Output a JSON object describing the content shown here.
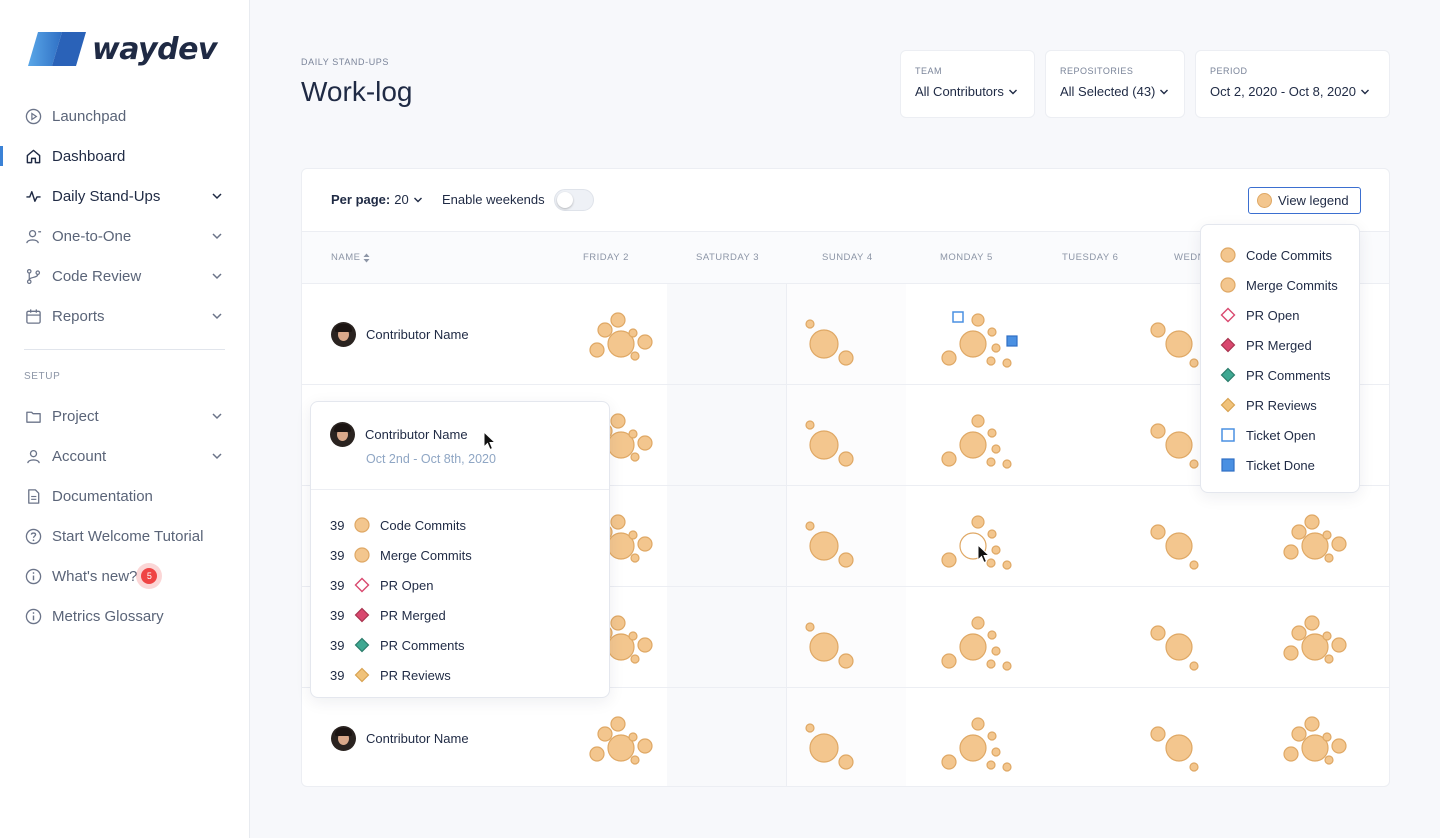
{
  "brand": {
    "name": "waydev"
  },
  "sidebar": {
    "items": [
      {
        "label": "Launchpad",
        "icon": "play-circle-icon",
        "chevron": false
      },
      {
        "label": "Dashboard",
        "icon": "home-icon",
        "chevron": false,
        "active": true
      },
      {
        "label": "Daily Stand-Ups",
        "icon": "activity-icon",
        "chevron": true
      },
      {
        "label": "One-to-One",
        "icon": "user-icon",
        "chevron": true
      },
      {
        "label": "Code Review",
        "icon": "git-branch-icon",
        "chevron": true
      },
      {
        "label": "Reports",
        "icon": "calendar-icon",
        "chevron": true
      }
    ],
    "setup_label": "SETUP",
    "setup_items": [
      {
        "label": "Project",
        "icon": "folder-icon",
        "chevron": true
      },
      {
        "label": "Account",
        "icon": "user-icon",
        "chevron": true
      },
      {
        "label": "Documentation",
        "icon": "file-icon",
        "chevron": false
      },
      {
        "label": "Start Welcome Tutorial",
        "icon": "help-circle-icon",
        "chevron": false
      },
      {
        "label": "What's new?",
        "icon": "info-icon",
        "chevron": false,
        "badge": "5"
      },
      {
        "label": "Metrics Glossary",
        "icon": "info-icon",
        "chevron": false
      }
    ]
  },
  "header": {
    "eyebrow": "DAILY STAND-UPS",
    "title": "Work-log",
    "filters": [
      {
        "label": "TEAM",
        "value": "All Contributors"
      },
      {
        "label": "REPOSITORIES",
        "value": "All Selected (43)"
      },
      {
        "label": "PERIOD",
        "value": "Oct 2, 2020 - Oct 8, 2020"
      }
    ]
  },
  "toolbar": {
    "per_page_label": "Per page:",
    "per_page_value": "20",
    "weekends_label": "Enable weekends",
    "weekends_enabled": false,
    "legend_button": "View legend"
  },
  "table": {
    "name_header": "NAME",
    "days": [
      "FRIDAY 2",
      "SATURDAY 3",
      "SUNDAY 4",
      "MONDAY 5",
      "TUESDAY 6",
      "WEDN"
    ],
    "rows": [
      {
        "name": "Contributor Name"
      },
      {
        "name": ""
      },
      {
        "name": ""
      },
      {
        "name": ""
      },
      {
        "name": "Contributor Name"
      }
    ]
  },
  "tooltip": {
    "name": "Contributor Name",
    "date": "Oct 2nd - Oct 8th, 2020",
    "items": [
      {
        "count": "39",
        "label": "Code Commits",
        "icon": "circle-icon"
      },
      {
        "count": "39",
        "label": "Merge Commits",
        "icon": "circle-icon"
      },
      {
        "count": "39",
        "label": "PR Open",
        "icon": "diamond-outline-icon"
      },
      {
        "count": "39",
        "label": "PR Merged",
        "icon": "diamond-red-icon"
      },
      {
        "count": "39",
        "label": "PR Comments",
        "icon": "diamond-teal-icon"
      },
      {
        "count": "39",
        "label": "PR Reviews",
        "icon": "diamond-orange-icon"
      }
    ]
  },
  "legend": {
    "items": [
      {
        "label": "Code Commits",
        "icon": "circle-icon"
      },
      {
        "label": "Merge Commits",
        "icon": "circle-icon"
      },
      {
        "label": "PR Open",
        "icon": "diamond-outline-icon"
      },
      {
        "label": "PR Merged",
        "icon": "diamond-red-icon"
      },
      {
        "label": "PR Comments",
        "icon": "diamond-teal-icon"
      },
      {
        "label": "PR Reviews",
        "icon": "diamond-orange-icon"
      },
      {
        "label": "Ticket Open",
        "icon": "square-outline-icon"
      },
      {
        "label": "Ticket Done",
        "icon": "square-filled-icon"
      }
    ]
  },
  "colors": {
    "accent": "#3b82d6",
    "commit_fill": "#f3c68e",
    "commit_stroke": "#dfa865",
    "pr_merged": "#d9486f",
    "pr_comments": "#3fa892",
    "pr_reviews": "#f0c27a",
    "ticket": "#4a90e2",
    "badge": "#ef4444"
  }
}
